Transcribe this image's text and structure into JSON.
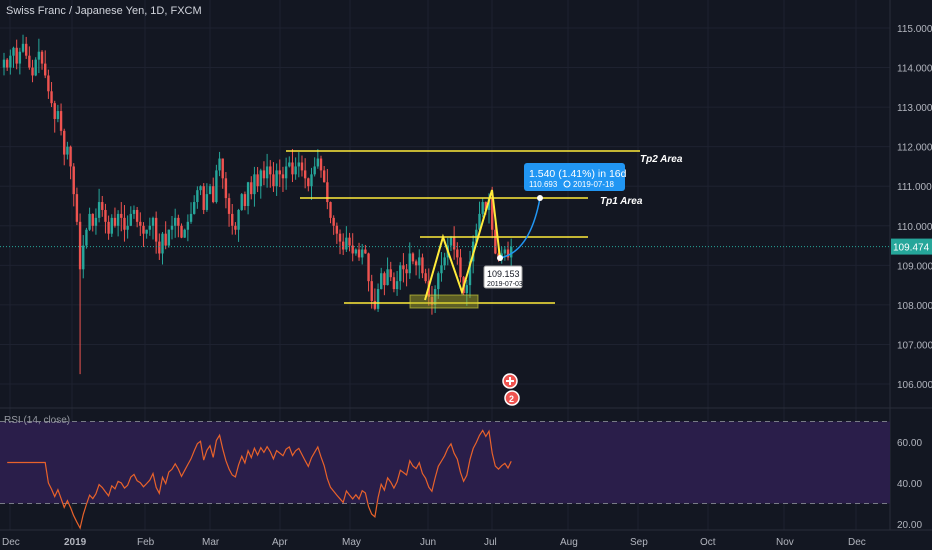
{
  "header": {
    "title": "Swiss Franc / Japanese Yen, 1D, FXCM"
  },
  "rsi": {
    "label": "RSI (14, close)",
    "ticks": [
      "60.00",
      "40.00",
      "20.00"
    ]
  },
  "price_axis": {
    "ticks": [
      "115.000",
      "114.000",
      "113.000",
      "112.000",
      "111.000",
      "110.000",
      "109.000",
      "108.000",
      "107.000",
      "106.000"
    ],
    "current": "109.474"
  },
  "time_axis": {
    "labels": [
      "Dec",
      "2019",
      "Feb",
      "Mar",
      "Apr",
      "May",
      "Jun",
      "Jul",
      "Aug",
      "Sep",
      "Oct",
      "Nov",
      "Dec"
    ]
  },
  "annotations": {
    "tp2": "Tp2 Area",
    "tp1": "Tp1 Area",
    "projection_line1": "1.540 (1.41%) in 16d",
    "projection_line2": "110.693",
    "projection_date": "2019-07-18",
    "low_price": "109.153",
    "low_date": "2019-07-03",
    "alert_badge": "2"
  },
  "colors": {
    "background": "#131722",
    "up": "#26a69a",
    "down": "#ef5350",
    "level_line": "#ffeb3b",
    "projection": "#2196f3",
    "rsi_line": "#e8622b",
    "rsi_band": "#2a1e4a"
  },
  "chart_data": {
    "type": "candlestick",
    "symbol": "CHFJPY",
    "interval": "1D",
    "x_range": [
      "2018-12-01",
      "2019-12-31"
    ],
    "ylim": [
      105.3,
      115.4
    ],
    "closes": [
      114.2,
      114.0,
      114.3,
      114.5,
      114.1,
      114.4,
      114.6,
      114.3,
      114.0,
      113.8,
      114.2,
      114.4,
      114.1,
      113.8,
      113.4,
      113.1,
      112.7,
      112.9,
      112.4,
      111.8,
      112.0,
      111.5,
      110.8,
      110.1,
      108.9,
      109.5,
      109.9,
      110.3,
      110.0,
      110.2,
      110.6,
      110.4,
      110.1,
      109.8,
      110.2,
      110.0,
      110.3,
      110.2,
      109.9,
      110.0,
      110.3,
      110.4,
      110.1,
      110.0,
      109.8,
      109.9,
      110.0,
      110.2,
      109.6,
      109.3,
      109.8,
      109.5,
      109.9,
      110.0,
      110.2,
      110.0,
      109.7,
      109.9,
      110.1,
      110.3,
      110.6,
      110.9,
      111.0,
      110.4,
      110.8,
      111.0,
      110.6,
      111.4,
      111.7,
      111.2,
      110.7,
      110.3,
      110.0,
      109.9,
      110.4,
      110.8,
      110.5,
      111.1,
      110.8,
      111.3,
      111.0,
      111.4,
      111.2,
      111.5,
      111.3,
      111.0,
      111.4,
      111.3,
      111.2,
      111.5,
      111.6,
      111.3,
      111.5,
      111.6,
      111.4,
      111.2,
      111.0,
      111.3,
      111.5,
      111.7,
      111.4,
      111.1,
      110.6,
      110.2,
      110.0,
      109.8,
      109.6,
      109.4,
      109.7,
      109.5,
      109.3,
      109.4,
      109.2,
      109.4,
      109.3,
      108.6,
      108.1,
      107.9,
      108.4,
      108.8,
      108.5,
      108.9,
      108.7,
      108.4,
      108.6,
      109.0,
      108.9,
      108.8,
      109.3,
      109.1,
      109.0,
      109.2,
      108.8,
      108.6,
      108.2,
      108.0,
      108.4,
      108.8,
      109.0,
      109.2,
      109.5,
      109.7,
      109.4,
      109.2,
      108.7,
      108.3,
      108.5,
      109.1,
      109.6,
      109.9,
      110.3,
      110.6,
      110.4,
      110.7,
      109.9,
      109.3,
      109.15,
      109.3,
      109.4,
      109.2,
      109.47
    ]
  }
}
